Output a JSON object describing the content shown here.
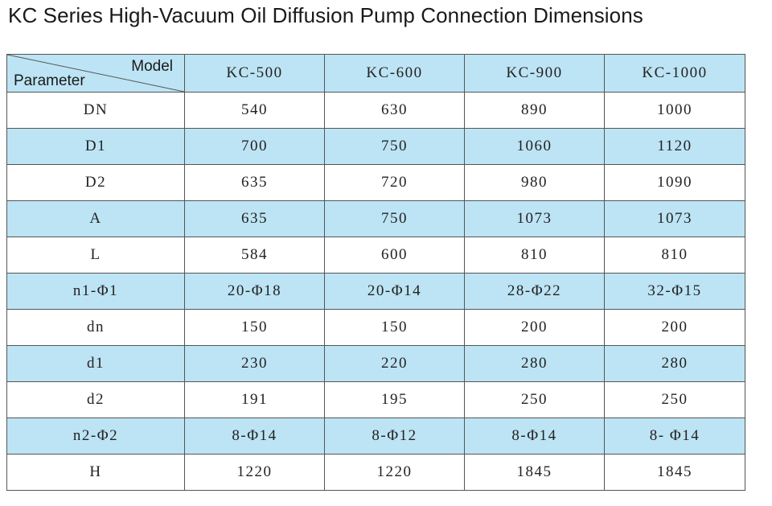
{
  "title": "KC Series High-Vacuum Oil Diffusion Pump Connection Dimensions",
  "table": {
    "corner_model_label": "Model",
    "corner_parameter_label": "Parameter",
    "models": [
      "KC-500",
      "KC-600",
      "KC-900",
      "KC-1000"
    ],
    "rows": [
      {
        "param": "DN",
        "values": [
          "540",
          "630",
          "890",
          "1000"
        ]
      },
      {
        "param": "D1",
        "values": [
          "700",
          "750",
          "1060",
          "1120"
        ]
      },
      {
        "param": "D2",
        "values": [
          "635",
          "720",
          "980",
          "1090"
        ]
      },
      {
        "param": "A",
        "values": [
          "635",
          "750",
          "1073",
          "1073"
        ]
      },
      {
        "param": "L",
        "values": [
          "584",
          "600",
          "810",
          "810"
        ]
      },
      {
        "param": "n1-Φ1",
        "values": [
          "20-Φ18",
          "20-Φ14",
          "28-Φ22",
          "32-Φ15"
        ]
      },
      {
        "param": "dn",
        "values": [
          "150",
          "150",
          "200",
          "200"
        ]
      },
      {
        "param": "d1",
        "values": [
          "230",
          "220",
          "280",
          "280"
        ]
      },
      {
        "param": "d2",
        "values": [
          "191",
          "195",
          "250",
          "250"
        ]
      },
      {
        "param": "n2-Φ2",
        "values": [
          "8-Φ14",
          "8-Φ12",
          "8-Φ14",
          "8- Φ14"
        ]
      },
      {
        "param": "H",
        "values": [
          "1220",
          "1220",
          "1845",
          "1845"
        ]
      }
    ]
  },
  "colors": {
    "header_fill": "#bde4f4",
    "shaded_row_fill": "#bde4f4",
    "border": "#555555"
  }
}
